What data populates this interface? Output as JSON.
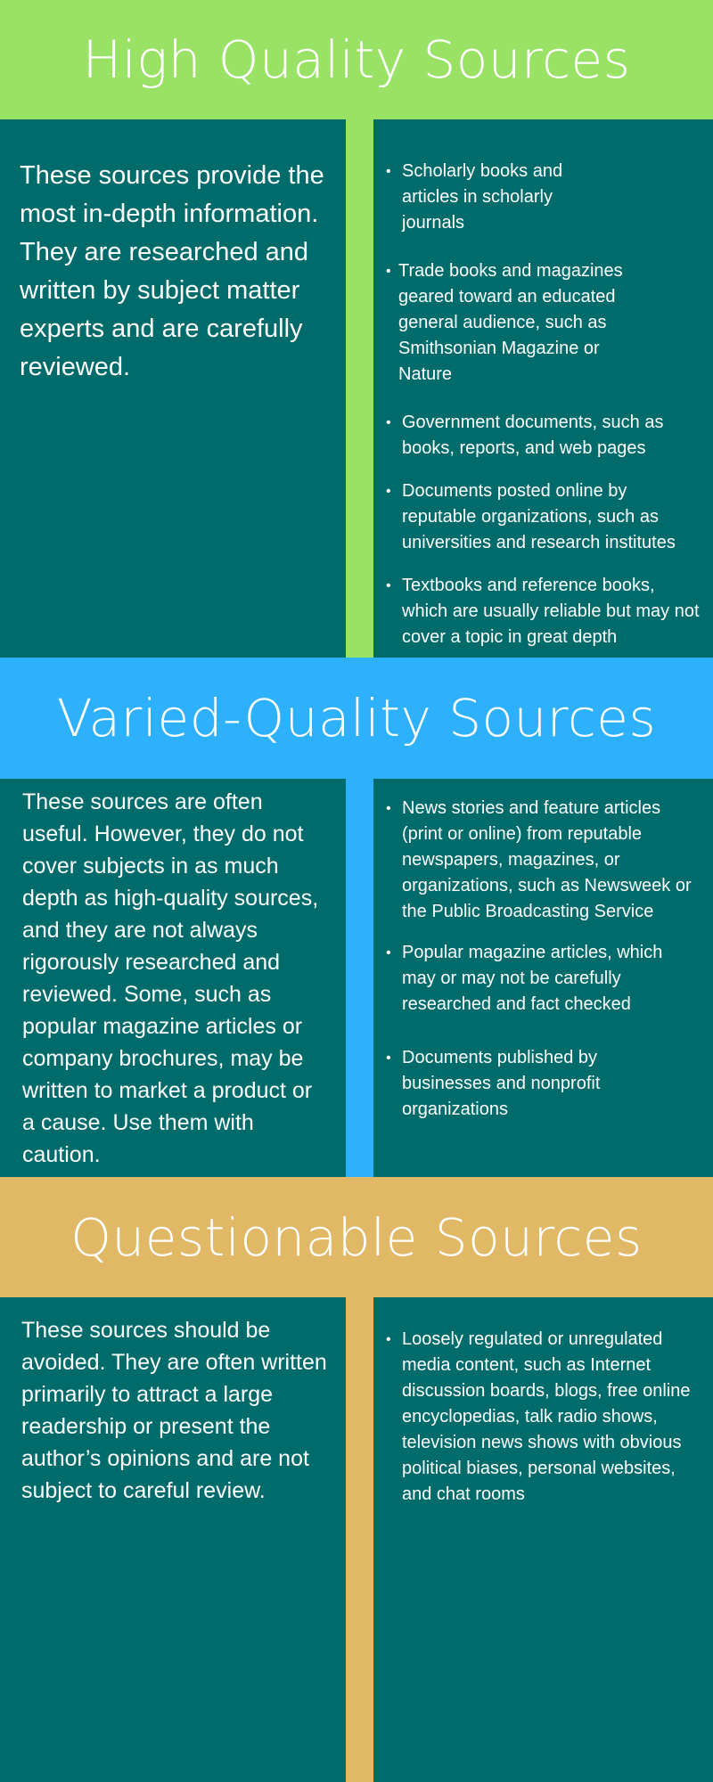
{
  "colors": {
    "panel": "#006b6b",
    "high_quality": "#99e266",
    "varied_quality": "#2eb1fc",
    "questionable": "#e1b866"
  },
  "sections": [
    {
      "title": "High Quality Sources",
      "intro": "These sources provide the most in-depth information. They are researched and written by subject matter experts and are carefully reviewed.",
      "items": [
        "Scholarly books and articles in scholarly journals",
        "Trade books and magazines geared toward an educated general audience, such as Smithsonian Magazine or Nature",
        "Government documents, such as books, reports, and web pages",
        "Documents posted online by reputable organizations, such as universities and research institutes",
        "Textbooks and reference books, which are usually reliable but may not cover a topic in great depth"
      ]
    },
    {
      "title": "Varied-Quality Sources",
      "intro": "These sources are often useful. However, they do not cover subjects in as much depth as high-quality sources, and they are not always rigorously researched and reviewed. Some, such as popular magazine articles or company brochures, may be written to market a product or a cause. Use them with caution.",
      "items": [
        "News stories and feature articles (print or online) from reputable newspapers, magazines, or organizations, such as Newsweek or the Public Broadcasting Service",
        "Popular magazine articles, which may or may not be carefully researched and fact checked",
        "Documents published by businesses and nonprofit organizations"
      ]
    },
    {
      "title": "Questionable Sources",
      "intro": "These sources should be avoided. They are often written primarily to attract a large readership or present the author’s opinions and are not subject to careful review.",
      "items": [
        "Loosely regulated or unregulated media content, such as Internet discussion boards, blogs, free online encyclopedias, talk radio shows, television news shows with obvious political biases, personal websites, and chat rooms"
      ]
    }
  ]
}
